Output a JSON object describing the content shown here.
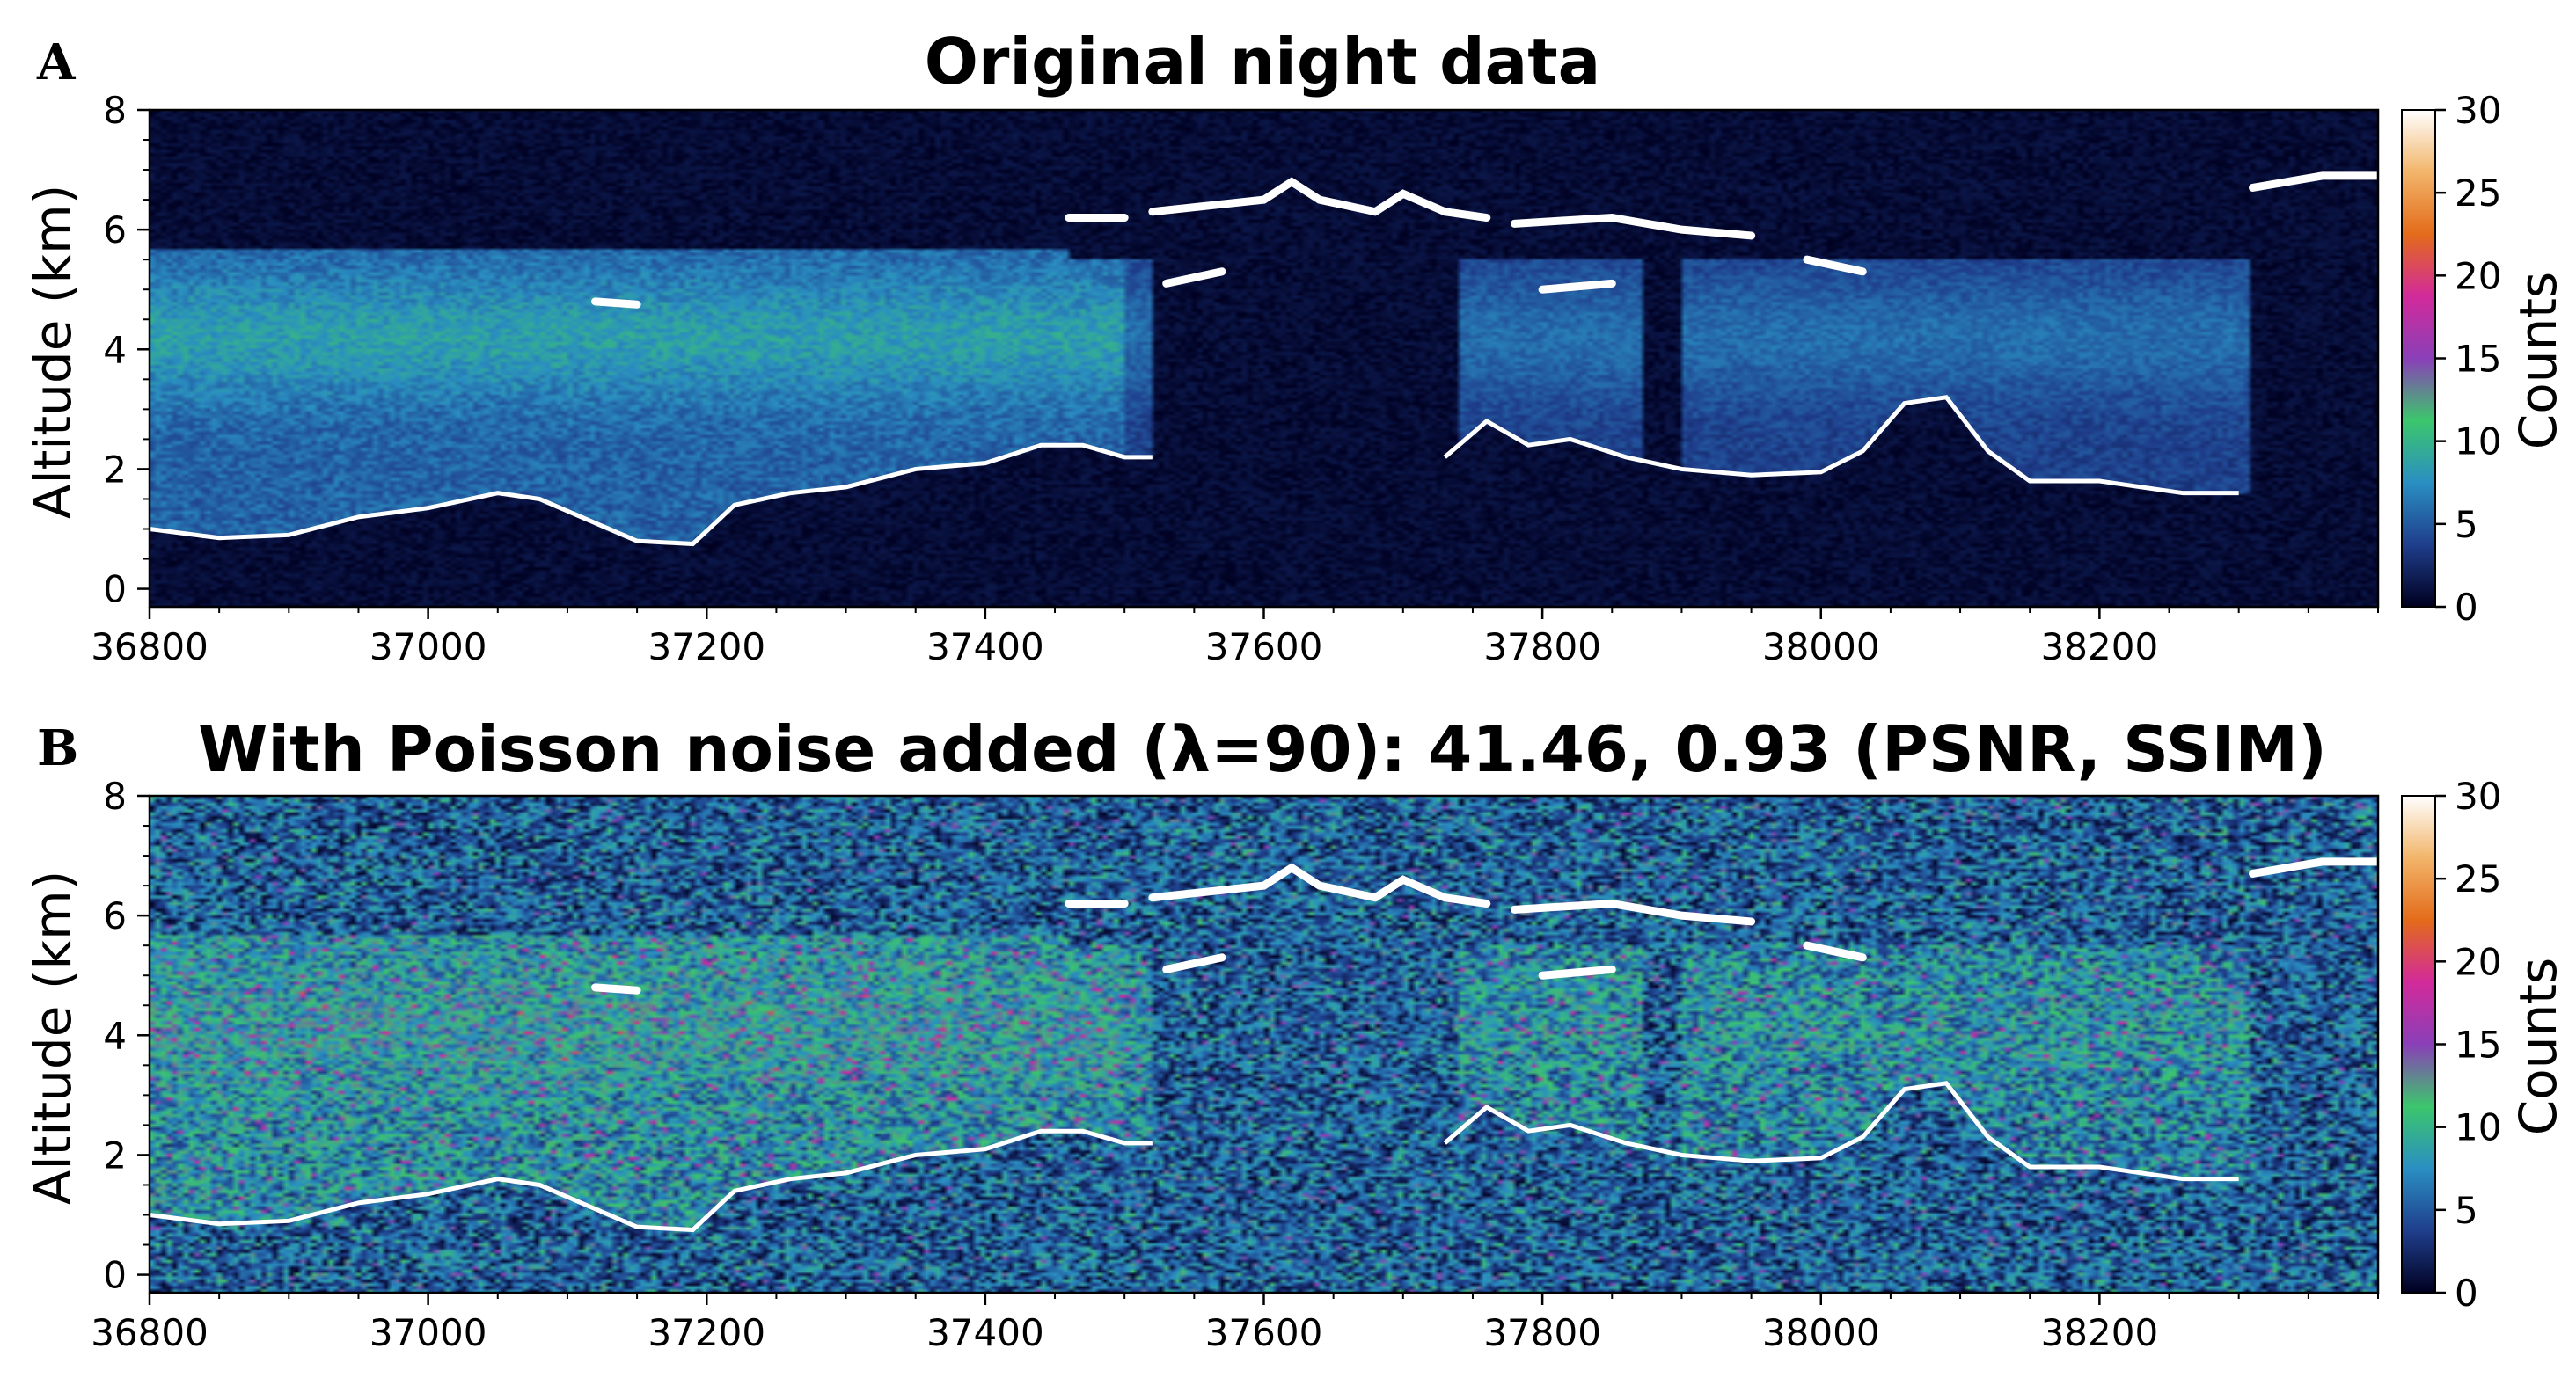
{
  "chart_data": [
    {
      "type": "heatmap",
      "panel_label": "A",
      "title": "Original night data",
      "xlabel": "",
      "ylabel": "Altitude (km)",
      "colorbar_label": "Counts",
      "xlim": [
        36800,
        38400
      ],
      "ylim": [
        -0.3,
        8
      ],
      "x_ticks": [
        36800,
        37000,
        37200,
        37400,
        37600,
        37800,
        38000,
        38200
      ],
      "y_ticks": [
        0,
        2,
        4,
        6,
        8
      ],
      "color_range": [
        0,
        30
      ],
      "colorbar_ticks": [
        0,
        5,
        10,
        15,
        20,
        25,
        30
      ],
      "noise": "none",
      "colormap_stops": [
        "#000020",
        "#1f3e8c",
        "#2a8fc2",
        "#3cc66c",
        "#8a3fb8",
        "#d22a9a",
        "#e36b1a",
        "#f2b56a",
        "#ffffff"
      ]
    },
    {
      "type": "heatmap",
      "panel_label": "B",
      "title": "With Poisson noise added (λ=90): 41.46, 0.93 (PSNR, SSIM)",
      "xlabel": "",
      "ylabel": "Altitude (km)",
      "colorbar_label": "Counts",
      "xlim": [
        36800,
        38400
      ],
      "ylim": [
        -0.3,
        8
      ],
      "x_ticks": [
        36800,
        37000,
        37200,
        37400,
        37600,
        37800,
        38000,
        38200
      ],
      "y_ticks": [
        0,
        2,
        4,
        6,
        8
      ],
      "color_range": [
        0,
        30
      ],
      "colorbar_ticks": [
        0,
        5,
        10,
        15,
        20,
        25,
        30
      ],
      "noise": "poisson",
      "noise_lambda": 90,
      "psnr": 41.46,
      "ssim": 0.93,
      "colormap_stops": [
        "#000020",
        "#1f3e8c",
        "#2a8fc2",
        "#3cc66c",
        "#8a3fb8",
        "#d22a9a",
        "#e36b1a",
        "#f2b56a",
        "#ffffff"
      ]
    }
  ],
  "ground_profile": {
    "x": [
      36800,
      36850,
      36900,
      36950,
      37000,
      37050,
      37080,
      37110,
      37150,
      37190,
      37220,
      37260,
      37300,
      37350,
      37400,
      37440,
      37470,
      37500,
      37520
    ],
    "y": [
      1.0,
      0.85,
      0.9,
      1.2,
      1.35,
      1.6,
      1.5,
      1.2,
      0.8,
      0.75,
      1.4,
      1.6,
      1.7,
      2.0,
      2.1,
      2.4,
      2.4,
      2.2,
      2.2
    ]
  },
  "ground_profile_right": {
    "x": [
      37730,
      37760,
      37790,
      37820,
      37860,
      37900,
      37950,
      38000,
      38030,
      38060,
      38090,
      38120,
      38150,
      38200,
      38260,
      38300
    ],
    "y": [
      2.2,
      2.8,
      2.4,
      2.5,
      2.2,
      2.0,
      1.9,
      1.95,
      2.3,
      3.1,
      3.2,
      2.3,
      1.8,
      1.8,
      1.6,
      1.6
    ]
  },
  "cloud_tops": [
    {
      "x": [
        37460,
        37500
      ],
      "y": [
        6.2,
        6.2
      ]
    },
    {
      "x": [
        37520,
        37600,
        37620,
        37640,
        37680
      ],
      "y": [
        6.3,
        6.5,
        6.8,
        6.5,
        6.3
      ]
    },
    {
      "x": [
        37680,
        37700,
        37730,
        37760
      ],
      "y": [
        6.3,
        6.6,
        6.3,
        6.2
      ]
    },
    {
      "x": [
        37780,
        37850,
        37900,
        37950
      ],
      "y": [
        6.1,
        6.2,
        6.0,
        5.9
      ]
    },
    {
      "x": [
        37990,
        38030
      ],
      "y": [
        5.5,
        5.3
      ]
    },
    {
      "x": [
        38310,
        38360,
        38400
      ],
      "y": [
        6.7,
        6.9,
        6.9
      ]
    },
    {
      "x": [
        37120,
        37150
      ],
      "y": [
        4.8,
        4.75
      ]
    },
    {
      "x": [
        37530,
        37570
      ],
      "y": [
        5.1,
        5.3
      ]
    },
    {
      "x": [
        37800,
        37850
      ],
      "y": [
        5.0,
        5.1
      ]
    }
  ]
}
